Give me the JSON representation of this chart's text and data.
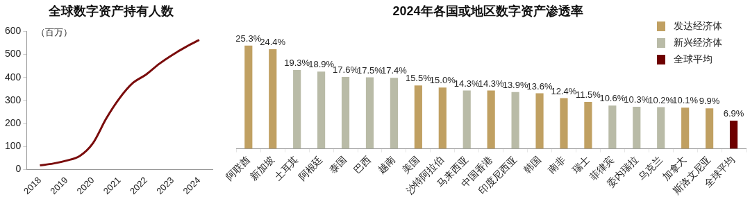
{
  "chart_data": [
    {
      "type": "line",
      "title": "全球数字资产持有人数",
      "ylabel": "（百万）",
      "x": [
        2018,
        2018.5,
        2019,
        2019.5,
        2020,
        2020.5,
        2021,
        2021.5,
        2022,
        2022.5,
        2023,
        2023.5,
        2024
      ],
      "series": [
        {
          "color": "#7a0c0c",
          "values": [
            18,
            26,
            39,
            59,
            115,
            222,
            310,
            376,
            413,
            460,
            499,
            533,
            563
          ]
        }
      ],
      "xlim": [
        2017.5,
        2024.5
      ],
      "xticks": [
        2018,
        2019,
        2020,
        2021,
        2022,
        2023,
        2024
      ],
      "ylim": [
        0,
        600
      ],
      "yticks": [
        0,
        100,
        200,
        300,
        400,
        500,
        600
      ],
      "grid": false,
      "legend": false,
      "marker": "none"
    },
    {
      "type": "bar",
      "title": "2024年各国或地区数字资产渗透率",
      "legend": "top right",
      "categories": [
        "阿联酋",
        "新加坡",
        "土耳其",
        "阿根廷",
        "泰国",
        "巴西",
        "越南",
        "美国",
        "沙特阿拉伯",
        "马来西亚",
        "中国香港",
        "印度尼西亚",
        "韩国",
        "南非",
        "瑞士",
        "菲律宾",
        "委内瑞拉",
        "乌克兰",
        "加拿大",
        "斯洛文尼亚",
        "全球平均"
      ],
      "series": [
        {
          "name": "发达经济体",
          "color": "#c0a062",
          "values": [
            25.3,
            24.4,
            null,
            null,
            null,
            null,
            null,
            15.5,
            15.0,
            null,
            14.3,
            null,
            13.6,
            12.4,
            11.5,
            null,
            null,
            null,
            10.1,
            9.9,
            null
          ],
          "value_labels": [
            "25.3%",
            "24.4%",
            null,
            null,
            null,
            null,
            null,
            "15.5%",
            "15.0%",
            null,
            "14.3%",
            null,
            "13.6%",
            "12.4%",
            "11.5%",
            null,
            null,
            null,
            "10.1%",
            "9.9%",
            null
          ]
        },
        {
          "name": "新兴经济体",
          "color": "#b9bba7",
          "values": [
            null,
            null,
            19.3,
            18.9,
            17.6,
            17.5,
            17.4,
            null,
            null,
            14.3,
            null,
            13.9,
            null,
            null,
            null,
            10.6,
            10.3,
            10.2,
            null,
            null,
            null
          ],
          "value_labels": [
            null,
            null,
            "19.3%",
            "18.9%",
            "17.6%",
            "17.5%",
            "17.4%",
            null,
            null,
            "14.3%",
            null,
            "13.9%",
            null,
            null,
            null,
            "10.6%",
            "10.3%",
            "10.2%",
            null,
            null,
            null
          ]
        },
        {
          "name": "全球平均",
          "color": "#6e0000",
          "values": [
            null,
            null,
            null,
            null,
            null,
            null,
            null,
            null,
            null,
            null,
            null,
            null,
            null,
            null,
            null,
            null,
            null,
            null,
            null,
            null,
            6.9
          ],
          "value_labels": [
            null,
            null,
            null,
            null,
            null,
            null,
            null,
            null,
            null,
            null,
            null,
            null,
            null,
            null,
            null,
            null,
            null,
            null,
            null,
            null,
            "6.9%"
          ]
        }
      ]
    }
  ]
}
